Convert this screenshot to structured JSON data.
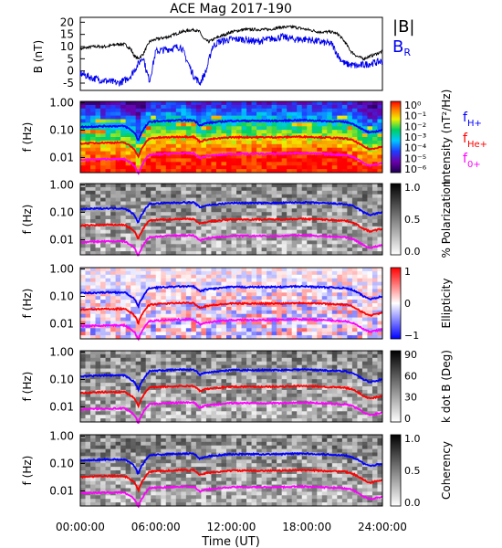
{
  "chart_data": {
    "type": "heatmap",
    "title": "ACE Mag 2017-190",
    "xlabel": "Time (UT)",
    "x_ticks": [
      "00:00:00",
      "06:00:00",
      "12:00:00",
      "18:00:00",
      "24:00:00"
    ],
    "xlim_hours": [
      0,
      24
    ],
    "top_panel": {
      "type": "line",
      "ylabel": "B (nT)",
      "ylim": [
        -8,
        22
      ],
      "y_ticks": [
        "20",
        "15",
        "10",
        "5",
        "0",
        "-5"
      ],
      "series": [
        {
          "name": "|B|",
          "color": "#000000",
          "x": [
            0,
            1,
            2,
            3,
            3.5,
            4,
            4.3,
            4.6,
            5,
            5.5,
            6,
            7,
            8,
            9,
            9.5,
            9.8,
            10.2,
            11,
            12,
            13,
            14,
            15,
            16,
            17,
            18,
            19,
            20,
            20.5,
            21,
            21.5,
            22,
            22.5,
            23,
            23.5,
            24
          ],
          "y": [
            9,
            10,
            10,
            11,
            11,
            9,
            6,
            5,
            7,
            12,
            13,
            14,
            16,
            17,
            16,
            13,
            12,
            14,
            16,
            17,
            17,
            17,
            18,
            18,
            17,
            16,
            16,
            15,
            12,
            8,
            6,
            5,
            6,
            7,
            8
          ]
        },
        {
          "name": "B_R",
          "color": "#0000ee",
          "x": [
            0,
            0.5,
            1,
            2,
            3,
            3.5,
            4,
            4.5,
            5,
            5.2,
            5.5,
            6,
            7,
            8,
            8.5,
            9,
            9.5,
            10,
            10.5,
            11,
            12,
            13,
            14,
            15,
            16,
            17,
            18,
            19,
            20,
            20.5,
            21,
            22,
            23,
            24
          ],
          "y": [
            -1,
            -2,
            -3,
            -4,
            -5,
            -4,
            -2,
            2,
            6,
            1,
            -4,
            8,
            9,
            10,
            4,
            -2,
            -5,
            0,
            10,
            12,
            13,
            13,
            12,
            13,
            14,
            13,
            13,
            12,
            11,
            6,
            3,
            2,
            3,
            4
          ]
        }
      ]
    },
    "freq_axis": {
      "label": "f (Hz)",
      "y_ticks": [
        "1.00",
        "0.10",
        "0.01"
      ]
    },
    "gyro_lines": [
      {
        "name": "fH+",
        "label": "f",
        "sub": "H+",
        "color": "#0000ff",
        "x": [
          0,
          2,
          3.5,
          4.3,
          4.6,
          5,
          5.5,
          6,
          7,
          8,
          9,
          9.5,
          10,
          11,
          12,
          13,
          14,
          15,
          16,
          17,
          18,
          19,
          20,
          21,
          21.5,
          22,
          22.5,
          23,
          23.5,
          24
        ],
        "y": [
          0.13,
          0.14,
          0.14,
          0.08,
          0.04,
          0.1,
          0.2,
          0.21,
          0.22,
          0.23,
          0.23,
          0.15,
          0.18,
          0.2,
          0.22,
          0.22,
          0.22,
          0.22,
          0.22,
          0.23,
          0.23,
          0.22,
          0.21,
          0.2,
          0.18,
          0.14,
          0.1,
          0.08,
          0.09,
          0.1
        ]
      },
      {
        "name": "fHe+",
        "label": "f",
        "sub": "He+",
        "color": "#ff0000"
      },
      {
        "name": "fO+",
        "label": "f",
        "sub": "0+",
        "color": "#ff00ff"
      }
    ],
    "panels": [
      {
        "name": "intensity",
        "colorbar_label": "Intensity (nT²/Hz)",
        "colorbar_ticks": [
          "10⁰",
          "10⁻¹",
          "10⁻²",
          "10⁻³",
          "10⁻⁴",
          "10⁻⁵",
          "10⁻⁶"
        ]
      },
      {
        "name": "polarization",
        "colorbar_label": "% Polarization",
        "colorbar_ticks": [
          "1.0",
          "0.5",
          "0.0"
        ]
      },
      {
        "name": "ellipticity",
        "colorbar_label": "Ellipticity",
        "colorbar_ticks": [
          "1",
          "0",
          "−1"
        ]
      },
      {
        "name": "kdotb",
        "colorbar_label": "k dot B (Deg)",
        "colorbar_ticks": [
          "90",
          "60",
          "30",
          "0"
        ]
      },
      {
        "name": "coherency",
        "colorbar_label": "Coherency",
        "colorbar_ticks": [
          "1.0",
          "0.5",
          "0.0"
        ]
      }
    ]
  }
}
